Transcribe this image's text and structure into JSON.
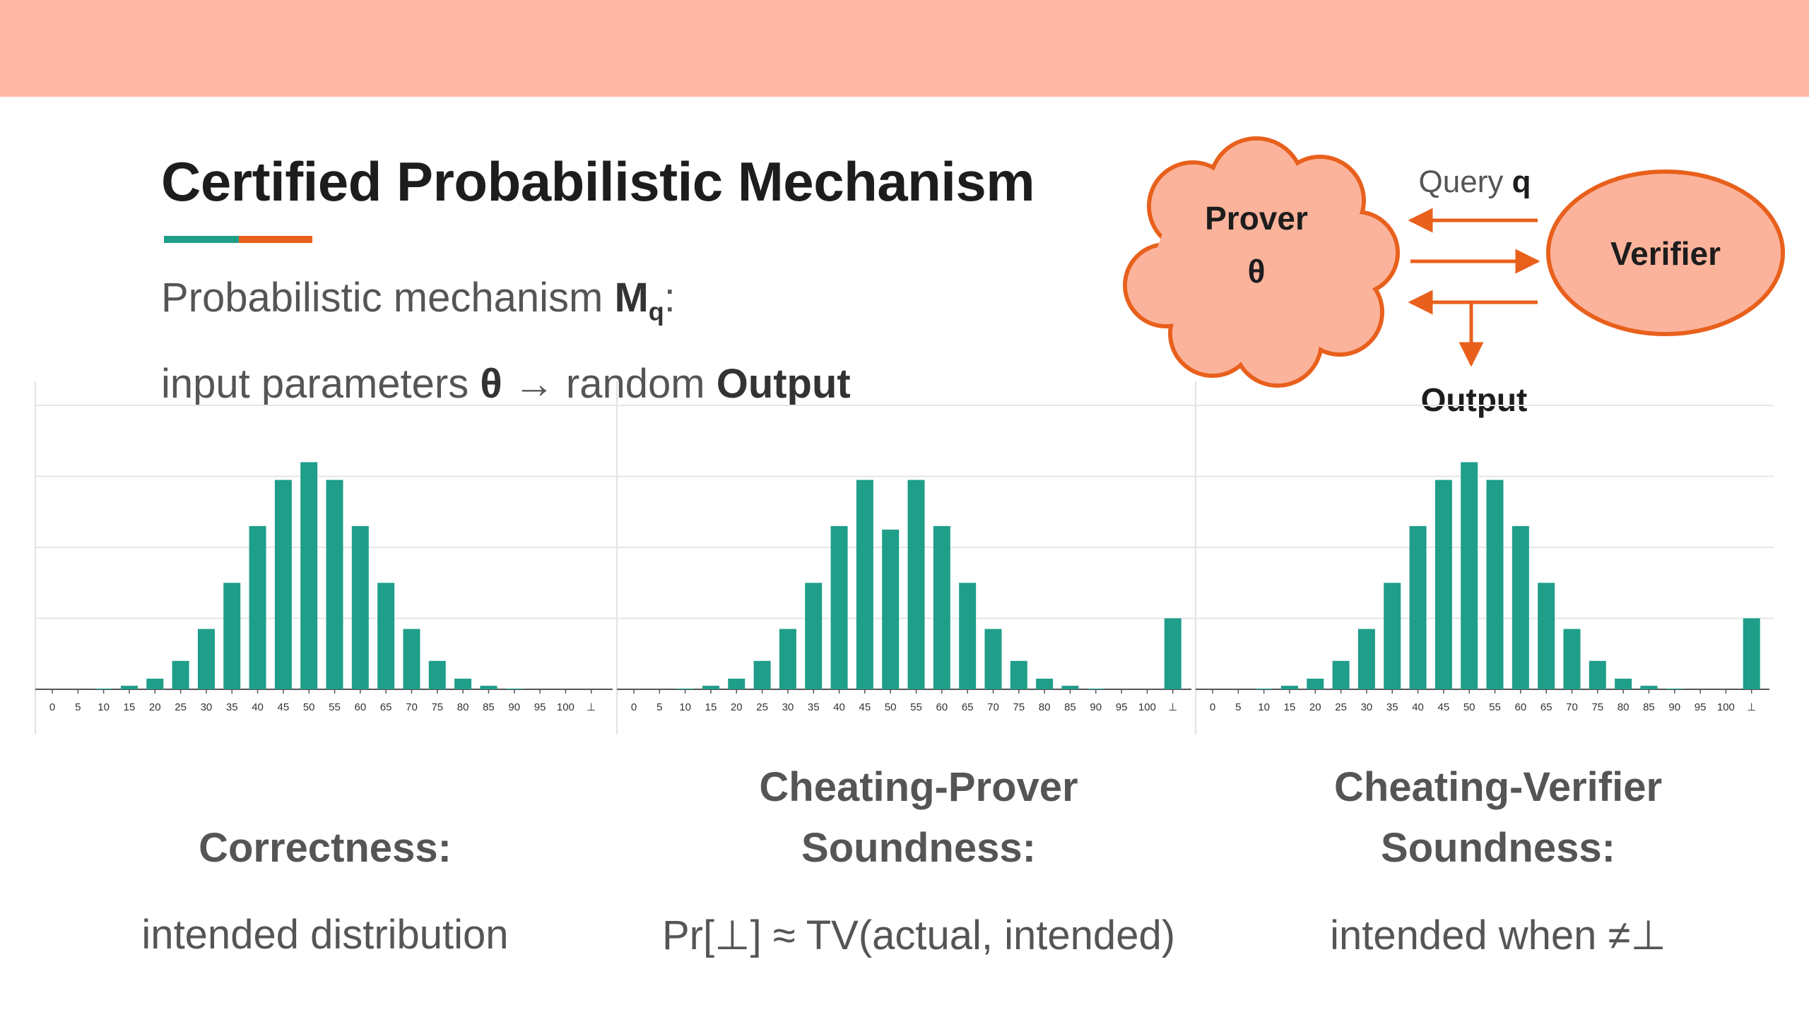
{
  "slide": {
    "title": "Certified Probabilistic Mechanism",
    "line1": {
      "prefix": "Probabilistic mechanism ",
      "symbol": "M",
      "subscript": "q",
      "suffix": ":"
    },
    "line2": {
      "prefix": "input parameters ",
      "theta": "θ",
      "arrow": " → random ",
      "output": "Output"
    }
  },
  "diagram": {
    "prover_label": "Prover",
    "prover_param": "θ",
    "verifier_label": "Verifier",
    "query_text": "Query ",
    "query_var": "q",
    "output_label": "Output",
    "colors": {
      "fill": "#fcb39b",
      "stroke": "#e8601c"
    }
  },
  "chart_data": [
    {
      "type": "bar",
      "categories": [
        "0",
        "5",
        "10",
        "15",
        "20",
        "25",
        "30",
        "35",
        "40",
        "45",
        "50",
        "55",
        "60",
        "65",
        "70",
        "75",
        "80",
        "85",
        "90",
        "95",
        "100",
        "⊥"
      ],
      "values": [
        0,
        0,
        0.2,
        1,
        3,
        8,
        17,
        30,
        46,
        59,
        64,
        59,
        46,
        30,
        17,
        8,
        3,
        1,
        0.2,
        0,
        0,
        0
      ],
      "ylim": [
        0,
        80
      ],
      "grid": true,
      "bar_color": "#1f9e8a"
    },
    {
      "type": "bar",
      "categories": [
        "0",
        "5",
        "10",
        "15",
        "20",
        "25",
        "30",
        "35",
        "40",
        "45",
        "50",
        "55",
        "60",
        "65",
        "70",
        "75",
        "80",
        "85",
        "90",
        "95",
        "100",
        "⊥"
      ],
      "values": [
        0,
        0,
        0.2,
        1,
        3,
        8,
        17,
        30,
        46,
        59,
        45,
        59,
        46,
        30,
        17,
        8,
        3,
        1,
        0.2,
        0,
        0,
        20
      ],
      "ylim": [
        0,
        80
      ],
      "grid": true,
      "bar_color": "#1f9e8a"
    },
    {
      "type": "bar",
      "categories": [
        "0",
        "5",
        "10",
        "15",
        "20",
        "25",
        "30",
        "35",
        "40",
        "45",
        "50",
        "55",
        "60",
        "65",
        "70",
        "75",
        "80",
        "85",
        "90",
        "95",
        "100",
        "⊥"
      ],
      "values": [
        0,
        0,
        0.2,
        1,
        3,
        8,
        17,
        30,
        46,
        59,
        64,
        59,
        46,
        30,
        17,
        8,
        3,
        1,
        0.2,
        0,
        0,
        20
      ],
      "ylim": [
        0,
        80
      ],
      "grid": true,
      "bar_color": "#1f9e8a"
    }
  ],
  "captions": [
    {
      "heading": [
        "Correctness:"
      ],
      "body": "intended distribution"
    },
    {
      "heading": [
        "Cheating-Prover",
        "Soundness:"
      ],
      "body": "Pr[⊥] ≈ TV(actual, intended)"
    },
    {
      "heading": [
        "Cheating-Verifier",
        "Soundness:"
      ],
      "body": "intended when ≠⊥"
    }
  ]
}
